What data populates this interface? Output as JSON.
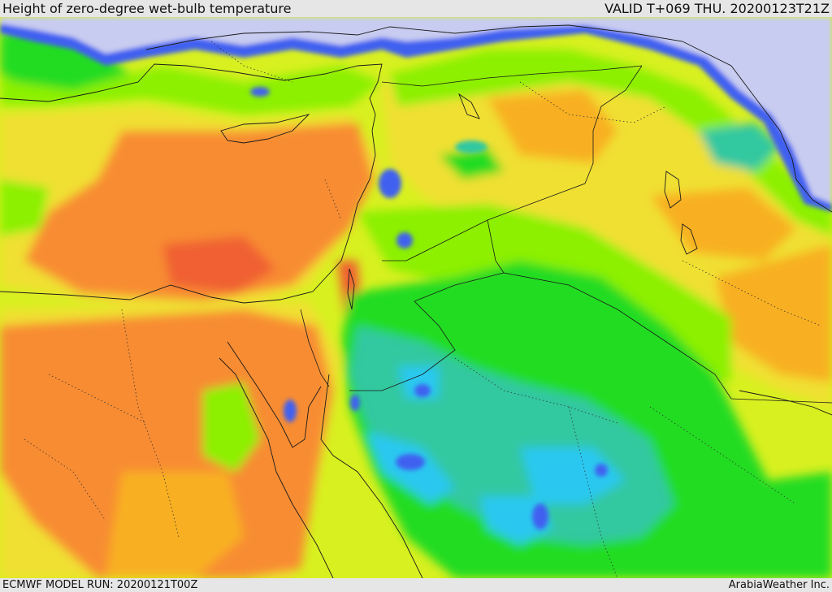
{
  "header": {
    "title": "Height of zero-degree wet-bulb temperature",
    "valid_time": "VALID T+069 THU. 20200123T21Z"
  },
  "footer": {
    "model_run": "ECMWF MODEL RUN: 20200121T00Z",
    "credit": "ArabiaWeather Inc."
  },
  "colors": {
    "background_bar": "#e6e6e6",
    "sea_cold": "#c8ccf0",
    "blue": "#4060f0",
    "light_blue": "#2cc8f0",
    "teal": "#30c8a0",
    "green": "#20dc20",
    "light_green": "#8cf000",
    "yellow_green": "#d8f020",
    "yellow": "#f0e030",
    "orange_yellow": "#f8b020",
    "orange": "#f88c30",
    "red_orange": "#f06030",
    "red": "#f03010",
    "border": "#1a1a1a"
  }
}
